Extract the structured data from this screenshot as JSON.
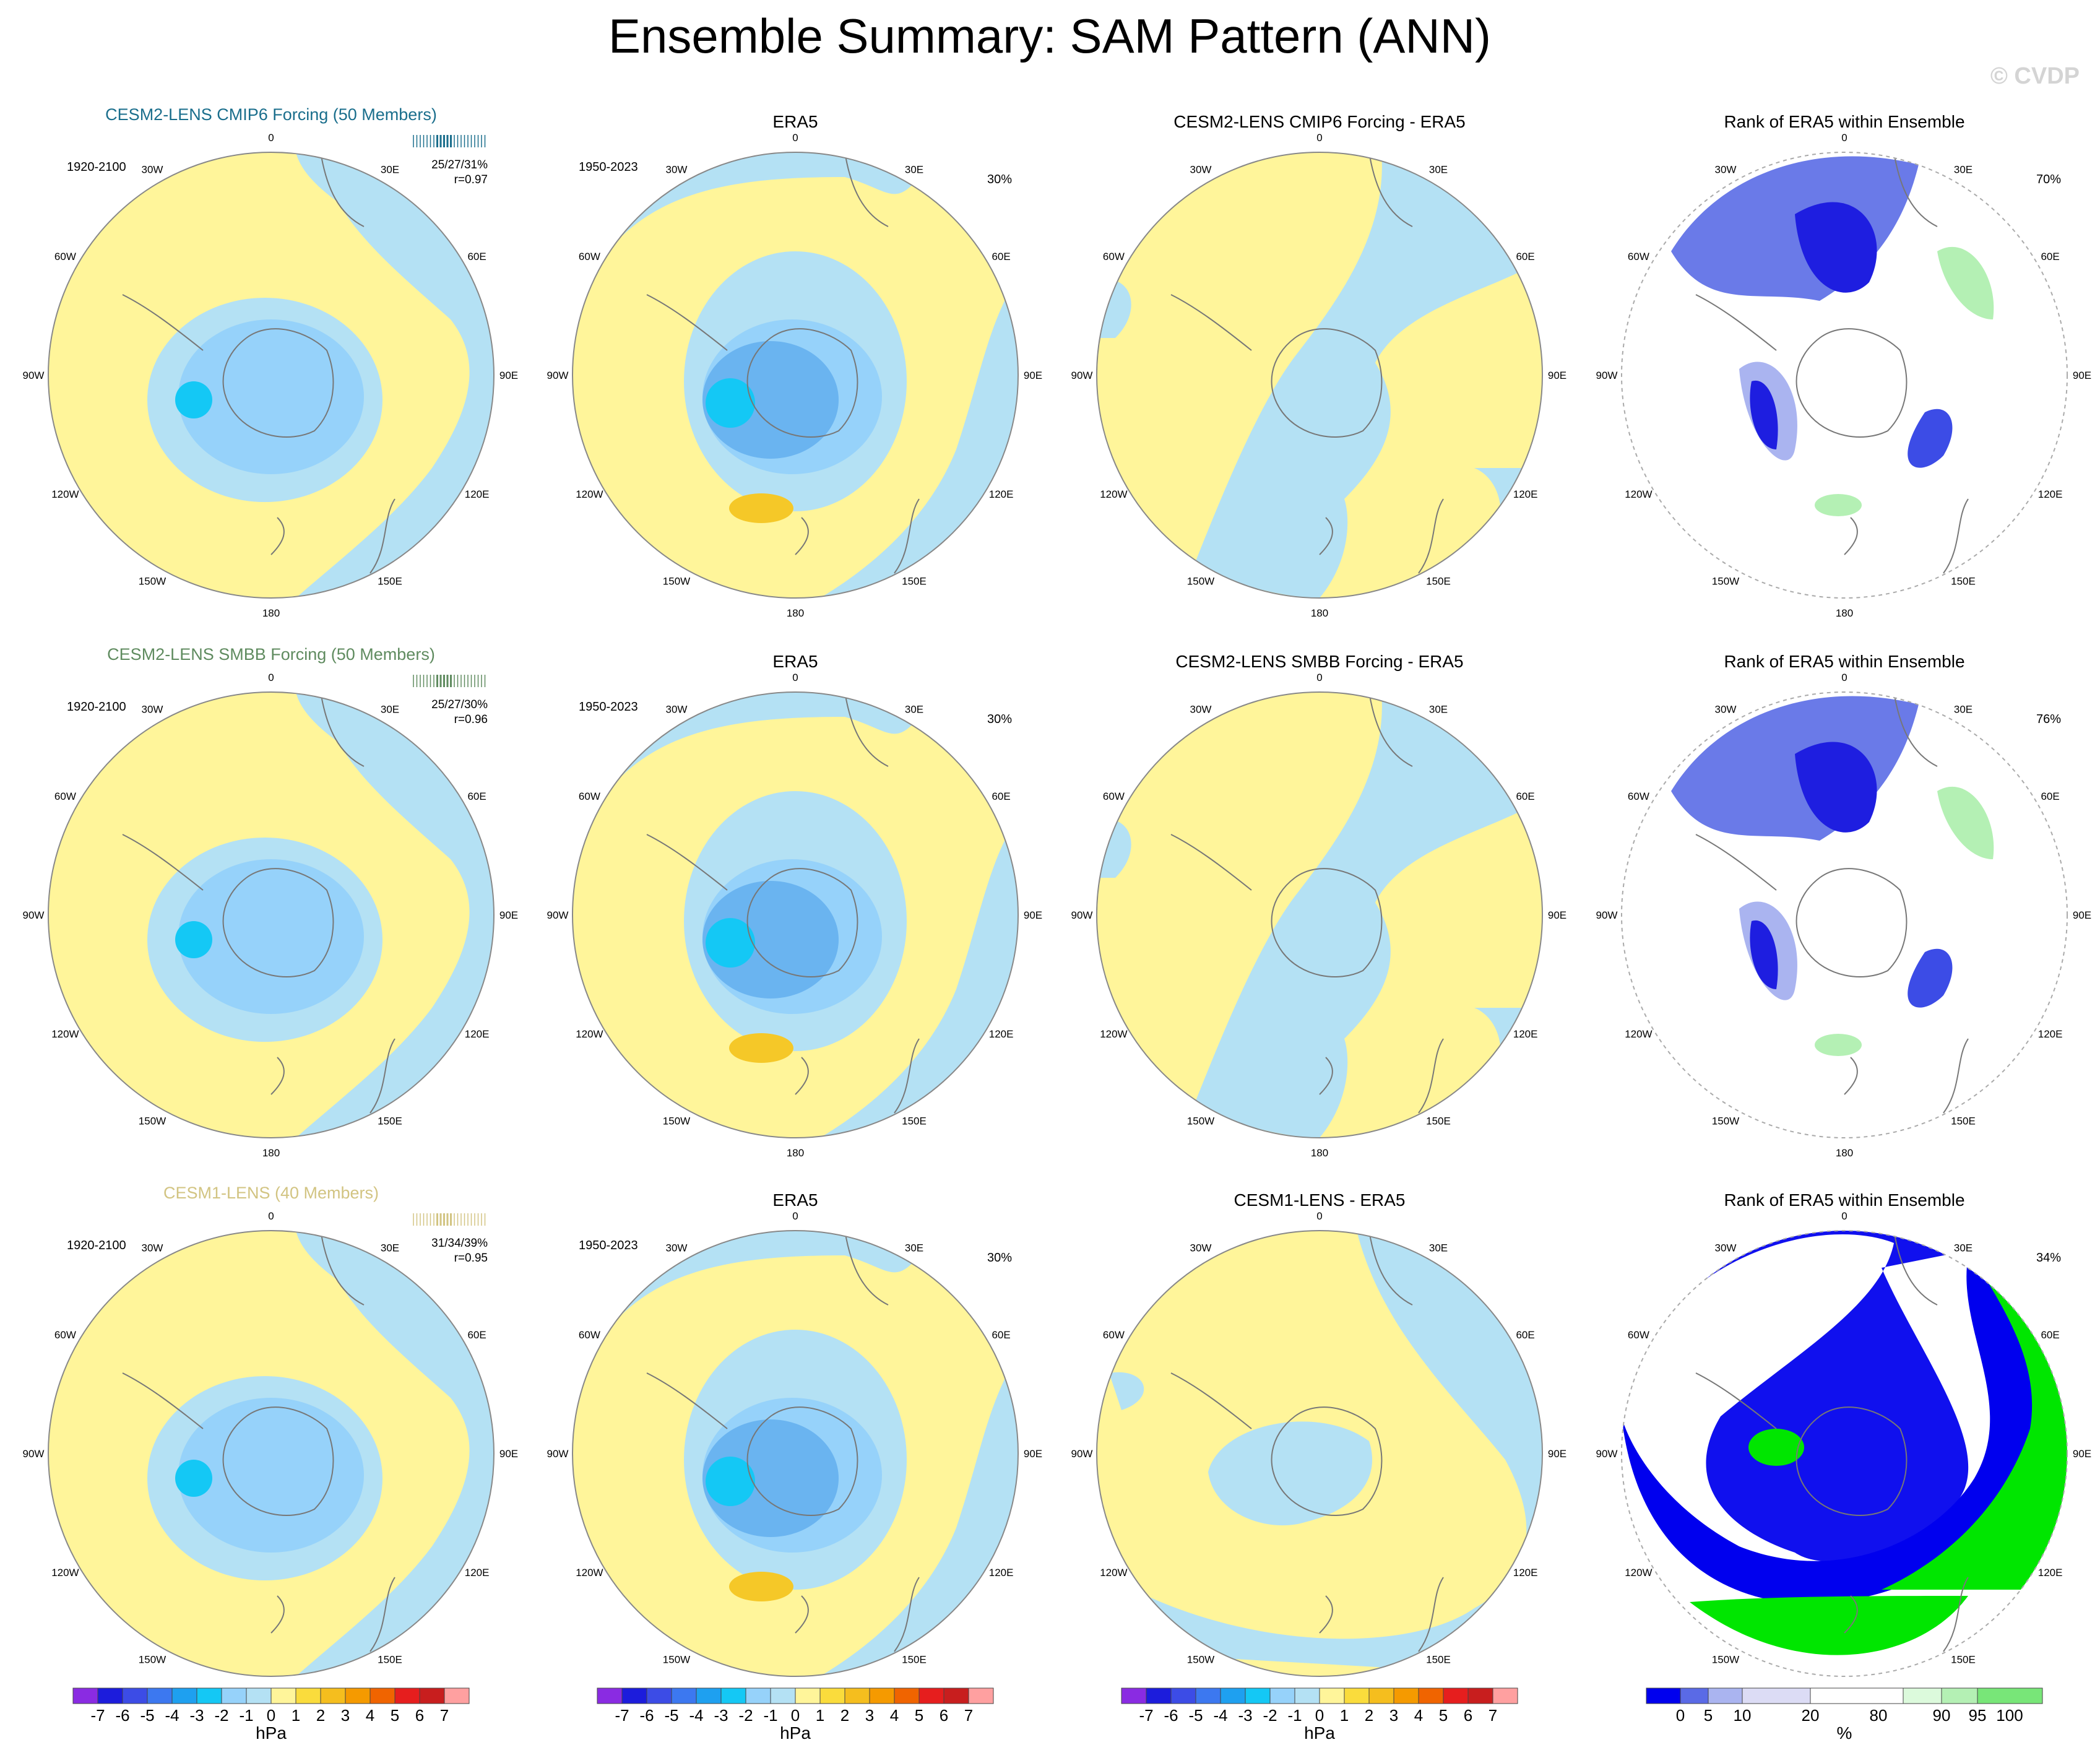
{
  "title": "Ensemble Summary: SAM Pattern (ANN)",
  "watermark": "© CVDP",
  "lon_labels": [
    "0",
    "30E",
    "60E",
    "90E",
    "120E",
    "150E",
    "180",
    "150W",
    "120W",
    "90W",
    "60W",
    "30W"
  ],
  "rows": [
    {
      "model_title": "CESM2-LENS CMIP6 Forcing (50 Members)",
      "model_title_color": "#1a6e8c",
      "model_period": "1920-2100",
      "model_stats_pct": "25/27/31%",
      "model_stats_r": "r=0.97",
      "obs_title": "ERA5",
      "obs_period": "1950-2023",
      "obs_pct": "30%",
      "diff_title": "CESM2-LENS CMIP6 Forcing - ERA5",
      "rank_title": "Rank of ERA5 within Ensemble",
      "rank_pct": "70%"
    },
    {
      "model_title": "CESM2-LENS SMBB Forcing (50 Members)",
      "model_title_color": "#5f8b5f",
      "model_period": "1920-2100",
      "model_stats_pct": "25/27/30%",
      "model_stats_r": "r=0.96",
      "obs_title": "ERA5",
      "obs_period": "1950-2023",
      "obs_pct": "30%",
      "diff_title": "CESM2-LENS SMBB Forcing - ERA5",
      "rank_title": "Rank of ERA5 within Ensemble",
      "rank_pct": "76%"
    },
    {
      "model_title": "CESM1-LENS (40 Members)",
      "model_title_color": "#d2c482",
      "model_period": "1920-2100",
      "model_stats_pct": "31/34/39%",
      "model_stats_r": "r=0.95",
      "obs_title": "ERA5",
      "obs_period": "1950-2023",
      "obs_pct": "30%",
      "diff_title": "CESM1-LENS - ERA5",
      "rank_title": "Rank of ERA5 within Ensemble",
      "rank_pct": "34%"
    }
  ],
  "colorbar_hpa": {
    "unit": "hPa",
    "labels": [
      "-7",
      "-6",
      "-5",
      "-4",
      "-3",
      "-2",
      "-1",
      "0",
      "1",
      "2",
      "3",
      "4",
      "5",
      "6",
      "7"
    ],
    "colors": [
      "#8a2be2",
      "#1c1cdc",
      "#3c4ce6",
      "#3c78f0",
      "#1ea0f0",
      "#14c8f5",
      "#96d2fa",
      "#b4e1f4",
      "#fff59a",
      "#fadc3c",
      "#f5be1e",
      "#f59a00",
      "#f06400",
      "#e61e1e",
      "#c81e1e",
      "#ffa0a0"
    ]
  },
  "colorbar_pct": {
    "unit": "%",
    "labels": [
      "0",
      "5",
      "10",
      "20",
      "80",
      "90",
      "95",
      "100"
    ],
    "colors": [
      "#0000ee",
      "#5a6ae6",
      "#aab4f0",
      "#dcdcf5",
      "#ffffff",
      "#dcfadc",
      "#b4f0b4",
      "#78e678",
      "#00e600"
    ]
  }
}
